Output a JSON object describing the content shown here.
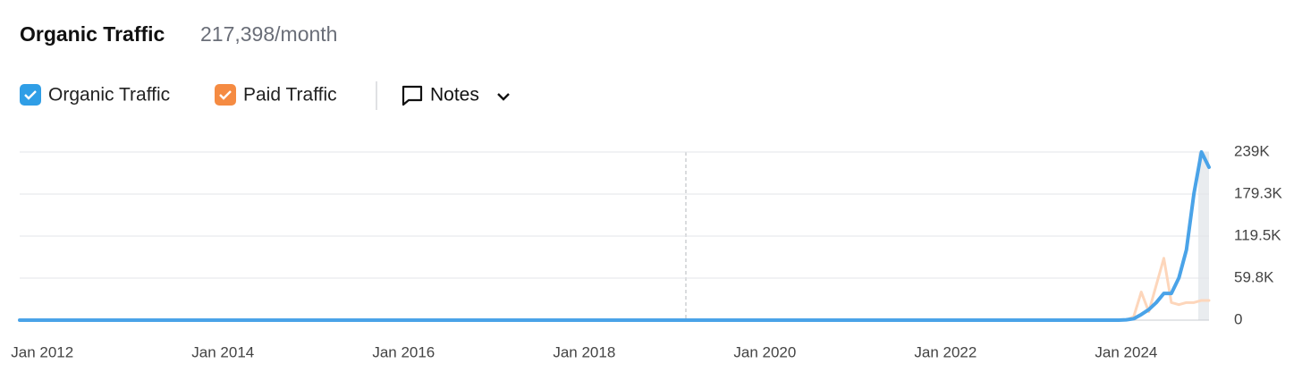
{
  "chart_data": {
    "type": "line",
    "title": "Organic Traffic",
    "subtitle": "217,398/month",
    "x": [
      "2011-10",
      "2023-11",
      "2023-12",
      "2024-01",
      "2024-02",
      "2024-03",
      "2024-04",
      "2024-05",
      "2024-06",
      "2024-07",
      "2024-08",
      "2024-09",
      "2024-10",
      "2024-11",
      "2024-12"
    ],
    "series": [
      {
        "name": "Organic Traffic",
        "color": "#4aa3e8",
        "values": [
          0,
          0,
          0,
          500,
          2000,
          8000,
          15000,
          25000,
          38000,
          38000,
          60000,
          100000,
          180000,
          239000,
          217398
        ]
      },
      {
        "name": "Paid Traffic",
        "color": "#fdd6bb",
        "values": [
          0,
          0,
          0,
          0,
          5000,
          40000,
          12000,
          50000,
          88000,
          25000,
          22000,
          25000,
          25000,
          28000,
          28000
        ]
      }
    ],
    "xlim": [
      "2011-10",
      "2024-12"
    ],
    "xticks": [
      {
        "value": "2012-01",
        "label": "Jan 2012"
      },
      {
        "value": "2014-01",
        "label": "Jan 2014"
      },
      {
        "value": "2016-01",
        "label": "Jan 2016"
      },
      {
        "value": "2018-01",
        "label": "Jan 2018"
      },
      {
        "value": "2020-01",
        "label": "Jan 2020"
      },
      {
        "value": "2022-01",
        "label": "Jan 2022"
      },
      {
        "value": "2024-01",
        "label": "Jan 2024"
      }
    ],
    "ylim": [
      0,
      239000
    ],
    "yticks": [
      0,
      {
        "value": 59800,
        "label": "59.8K"
      },
      {
        "value": 119500,
        "label": "119.5K"
      },
      {
        "value": 179300,
        "label": "179.3K"
      },
      {
        "value": 239000,
        "label": "239K"
      }
    ],
    "grid": true
  },
  "notes_button": "Notes"
}
